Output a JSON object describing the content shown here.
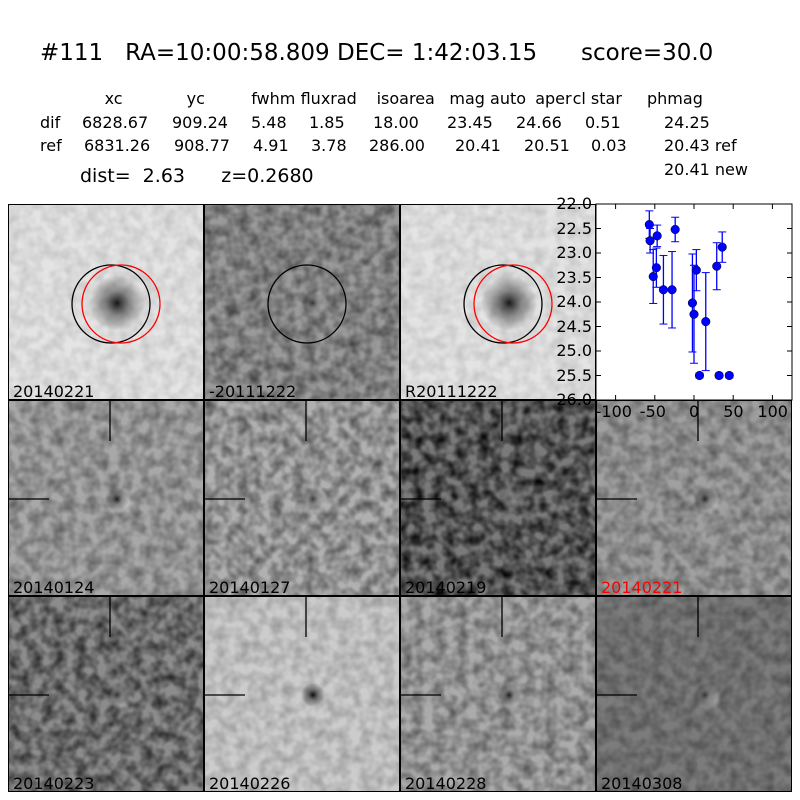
{
  "title": {
    "id": "#111",
    "ra": "RA=10:00:58.809",
    "dec": "DEC= 1:42:03.15",
    "score": "score=30.0"
  },
  "table": {
    "headers": [
      "xc",
      "yc",
      "fwhm",
      "fluxrad",
      "isoarea",
      "mag auto",
      "aper",
      "cl star",
      "phmag"
    ],
    "rows": [
      {
        "label": "dif",
        "values": [
          "6828.67",
          "909.24",
          "5.48",
          "1.85",
          "18.00",
          "23.45",
          "24.66",
          "0.51",
          "24.25"
        ]
      },
      {
        "label": "ref",
        "values": [
          "6831.26",
          "908.77",
          "4.91",
          "3.78",
          "286.00",
          "20.41",
          "20.51",
          "0.03",
          "20.43 ref"
        ]
      }
    ],
    "extra": "20.41 new"
  },
  "dist": "dist=  2.63",
  "z": "z=0.2680",
  "panels": [
    {
      "label": "20140221",
      "bg": "#e4e4e4",
      "contrast": 0.12,
      "blob": 0.9,
      "circles": [
        "black",
        "red"
      ],
      "crosshair": false,
      "label_color": "#000000"
    },
    {
      "label": "-20111222",
      "bg": "#9a9a9a",
      "contrast": 0.45,
      "blob": 0.7,
      "circles": [
        "black"
      ],
      "crosshair": false,
      "label_color": "#000000"
    },
    {
      "label": "R20111222",
      "bg": "#e4e4e4",
      "contrast": 0.12,
      "blob": 0.9,
      "circles": [
        "black",
        "red"
      ],
      "crosshair": false,
      "label_color": "#000000"
    },
    {
      "label": "20140124",
      "bg": "#a8a8a8",
      "contrast": 0.35,
      "blob": 0.85,
      "circles": [],
      "crosshair": true,
      "label_color": "#000000"
    },
    {
      "label": "20140127",
      "bg": "#b0b0b0",
      "contrast": 0.45,
      "blob": 0.7,
      "circles": [],
      "crosshair": true,
      "label_color": "#000000"
    },
    {
      "label": "20140219",
      "bg": "#7a7a7a",
      "contrast": 0.8,
      "blob": 0.5,
      "circles": [],
      "crosshair": true,
      "label_color": "#000000"
    },
    {
      "label": "20140221",
      "bg": "#a0a0a0",
      "contrast": 0.35,
      "blob": 0.8,
      "circles": [],
      "crosshair": true,
      "label_color": "#ff0000"
    },
    {
      "label": "20140223",
      "bg": "#8c8c8c",
      "contrast": 0.6,
      "blob": 0.7,
      "circles": [],
      "crosshair": true,
      "label_color": "#000000"
    },
    {
      "label": "20140226",
      "bg": "#cccccc",
      "contrast": 0.2,
      "blob": 0.95,
      "circles": [],
      "crosshair": true,
      "label_color": "#000000"
    },
    {
      "label": "20140228",
      "bg": "#ababab",
      "contrast": 0.4,
      "blob": 0.85,
      "circles": [],
      "crosshair": true,
      "label_color": "#000000"
    },
    {
      "label": "20140308",
      "bg": "#7c7c7c",
      "contrast": 0.3,
      "blob": 0.7,
      "circles": [],
      "crosshair": true,
      "label_color": "#000000"
    }
  ],
  "chart_data": {
    "type": "scatter",
    "xlim": [
      -125,
      125
    ],
    "ylim": [
      26.0,
      22.0
    ],
    "y_inverted": true,
    "xticks": [
      "-100",
      "-50",
      "0",
      "50",
      "100"
    ],
    "xtick_values": [
      -100,
      -50,
      0,
      50,
      100
    ],
    "yticks": [
      "22.0",
      "22.5",
      "23.0",
      "23.5",
      "24.0",
      "24.5",
      "25.0",
      "25.5",
      "26.0"
    ],
    "ytick_values": [
      22.0,
      22.5,
      23.0,
      23.5,
      24.0,
      24.5,
      25.0,
      25.5,
      26.0
    ],
    "color": "#0000ff",
    "points": [
      {
        "x": -57,
        "y": 22.42,
        "err": 0.28
      },
      {
        "x": -56,
        "y": 22.75,
        "err": 0.25
      },
      {
        "x": -47,
        "y": 22.65,
        "err": 0.22
      },
      {
        "x": -24,
        "y": 22.52,
        "err": 0.25
      },
      {
        "x": -48,
        "y": 23.3,
        "err": 0.4
      },
      {
        "x": -52,
        "y": 23.48,
        "err": 0.55
      },
      {
        "x": -39,
        "y": 23.75,
        "err": 0.7
      },
      {
        "x": -28,
        "y": 23.75,
        "err": 0.78
      },
      {
        "x": -2,
        "y": 24.02,
        "err": 1.0
      },
      {
        "x": 0,
        "y": 24.25,
        "err": 1.0
      },
      {
        "x": 3,
        "y": 23.35,
        "err": 0.42
      },
      {
        "x": 15,
        "y": 24.4,
        "err": 1.0
      },
      {
        "x": 29,
        "y": 23.27,
        "err": 0.48
      },
      {
        "x": 36,
        "y": 22.88,
        "err": 0.31
      },
      {
        "x": 7,
        "y": 25.5,
        "err": 0.05
      },
      {
        "x": 32,
        "y": 25.5,
        "err": 0.05
      },
      {
        "x": 45,
        "y": 25.5,
        "err": 0.05
      }
    ]
  }
}
